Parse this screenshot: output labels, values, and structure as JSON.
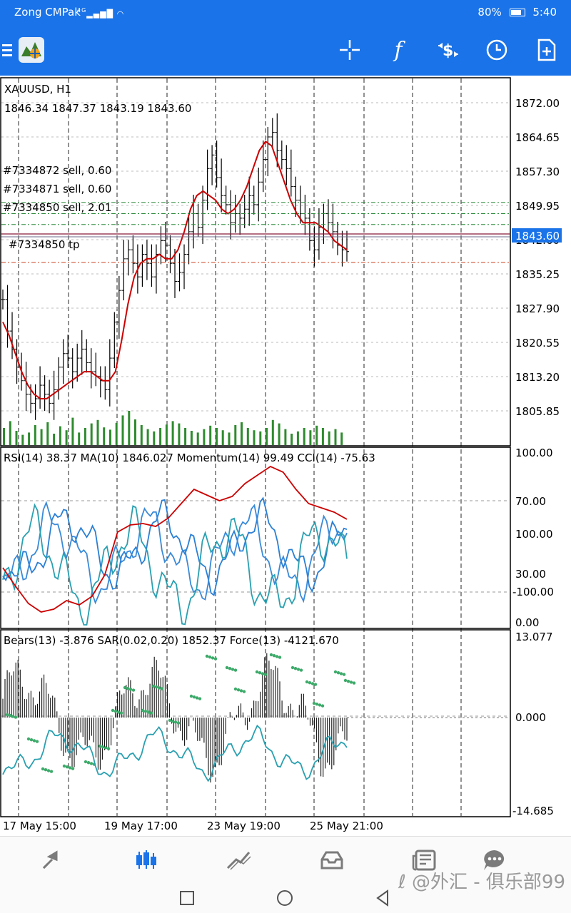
{
  "status_bar": {
    "carrier": "Zong CMPak",
    "network": "4G",
    "battery": "80%",
    "time": "5:40"
  },
  "chart": {
    "symbol_timeframe": "XAUUSD, H1",
    "ohlc": "1846.34 1847.37 1843.19 1843.60",
    "price_axis": [
      "1872.00",
      "1864.65",
      "1857.30",
      "1849.95",
      "1842.60",
      "1835.25",
      "1827.90",
      "1820.55",
      "1813.20",
      "1805.85"
    ],
    "current_price": "1843.60",
    "orders": [
      {
        "label": "#7334872 sell, 0.60",
        "price": 1854.5
      },
      {
        "label": "#7334871 sell, 0.60",
        "price": 1852.0
      },
      {
        "label": "#7334850 sell, 2.01",
        "price": 1849.6
      }
    ],
    "tp_label": "#7334850 tp",
    "tp_price": 1841.2,
    "indicator1_title": "RSI(14) 38.37 MA(10) 1846.027 Momentum(14) 99.49 CCI(14) -75.63",
    "indicator1_axis": [
      "100.00",
      "70.00",
      "100.00",
      "30.00",
      "-100.00",
      "0.00"
    ],
    "indicator2_title": "Bears(13) -3.876 SAR(0.02,0.20) 1852.37 Force(13) -4121.670",
    "indicator2_axis": [
      "13.077",
      "0.000",
      "-14.685"
    ],
    "time_axis": [
      "17 May 15:00",
      "19 May 17:00",
      "23 May 19:00",
      "25 May 21:00"
    ],
    "colors": {
      "ma": "#cc0000",
      "volume": "#2e8b2e",
      "rsi": "#2a7fd4",
      "cci": "#2aa0b0",
      "sar": "#3daa6a",
      "grid": "#000000",
      "price_label_bg": "#1a73e8"
    }
  },
  "chart_data": {
    "type": "candlestick",
    "title": "XAUUSD, H1",
    "ylim": [
      1802.0,
      1875.0
    ],
    "x": [
      "17 May 15:00",
      "19 May 17:00",
      "23 May 19:00",
      "25 May 21:00"
    ],
    "close_series": [
      1833,
      1826,
      1822,
      1818,
      1815,
      1812,
      1810,
      1811,
      1814,
      1812,
      1810,
      1813,
      1818,
      1821,
      1820,
      1817,
      1820,
      1822,
      1819,
      1817,
      1816,
      1815,
      1813,
      1820,
      1828,
      1835,
      1842,
      1844,
      1841,
      1838,
      1843,
      1841,
      1838,
      1843,
      1846,
      1845,
      1841,
      1837,
      1839,
      1843,
      1848,
      1852,
      1849,
      1855,
      1862,
      1865,
      1860,
      1856,
      1854,
      1850,
      1852,
      1851,
      1853,
      1856,
      1854,
      1859,
      1864,
      1869,
      1870,
      1866,
      1864,
      1862,
      1858,
      1855,
      1852,
      1851,
      1846,
      1844,
      1849,
      1852,
      1850,
      1848,
      1845,
      1844,
      1843.6
    ],
    "ma_series": [
      1828,
      1825,
      1821,
      1817,
      1814,
      1812,
      1811,
      1811,
      1812,
      1813,
      1814,
      1815,
      1816,
      1817,
      1817,
      1816,
      1815,
      1815,
      1817,
      1824,
      1832,
      1838,
      1841,
      1842,
      1842,
      1843,
      1842,
      1842,
      1844,
      1848,
      1853,
      1856,
      1857,
      1856,
      1855,
      1853,
      1852,
      1853,
      1855,
      1858,
      1862,
      1866,
      1868,
      1867,
      1863,
      1859,
      1855,
      1852,
      1850,
      1850,
      1850,
      1849,
      1848,
      1846,
      1845,
      1844
    ],
    "volume_series": [
      30,
      42,
      25,
      18,
      22,
      35,
      28,
      40,
      20,
      33,
      26,
      48,
      22,
      30,
      38,
      44,
      31,
      27,
      39,
      52,
      60,
      45,
      35,
      28,
      24,
      30,
      36,
      42,
      38,
      30,
      25,
      22,
      28,
      34,
      30,
      26,
      22,
      35,
      40,
      30,
      26,
      24,
      30,
      44,
      38,
      28,
      20,
      24,
      30,
      26,
      34,
      30,
      24,
      28,
      22
    ]
  }
}
